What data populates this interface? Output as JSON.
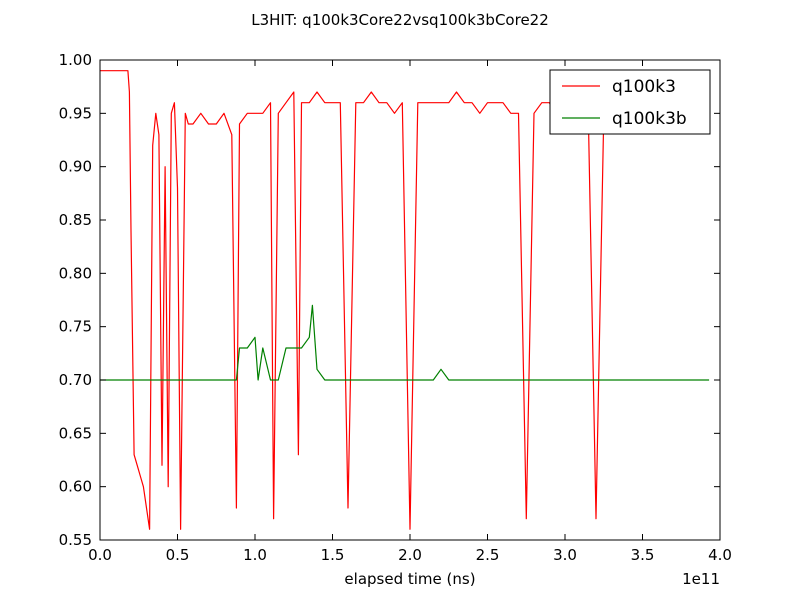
{
  "chart_data": {
    "type": "line",
    "title": "L3HIT: q100k3Core22vsq100k3bCore22",
    "xlabel": "elapsed time (ns)",
    "ylabel": "",
    "x_offset_label": "1e11",
    "xlim": [
      0.0,
      4.0
    ],
    "ylim": [
      0.55,
      1.0
    ],
    "x_ticks": [
      0.0,
      0.5,
      1.0,
      1.5,
      2.0,
      2.5,
      3.0,
      3.5,
      4.0
    ],
    "x_tick_labels": [
      "0.0",
      "0.5",
      "1.0",
      "1.5",
      "2.0",
      "2.5",
      "3.0",
      "3.5",
      "4.0"
    ],
    "y_ticks": [
      0.55,
      0.6,
      0.65,
      0.7,
      0.75,
      0.8,
      0.85,
      0.9,
      0.95,
      1.0
    ],
    "y_tick_labels": [
      "0.55",
      "0.60",
      "0.65",
      "0.70",
      "0.75",
      "0.80",
      "0.85",
      "0.90",
      "0.95",
      "1.00"
    ],
    "grid": false,
    "legend_position": "top-right",
    "series": [
      {
        "name": "q100k3",
        "color": "#ff0000",
        "x": [
          0.0,
          0.02,
          0.05,
          0.1,
          0.15,
          0.18,
          0.19,
          0.2,
          0.22,
          0.24,
          0.26,
          0.28,
          0.3,
          0.32,
          0.34,
          0.36,
          0.38,
          0.4,
          0.42,
          0.44,
          0.46,
          0.48,
          0.5,
          0.52,
          0.55,
          0.57,
          0.6,
          0.65,
          0.7,
          0.75,
          0.8,
          0.85,
          0.88,
          0.9,
          0.95,
          1.0,
          1.05,
          1.1,
          1.12,
          1.15,
          1.2,
          1.25,
          1.28,
          1.3,
          1.35,
          1.4,
          1.45,
          1.5,
          1.55,
          1.6,
          1.65,
          1.7,
          1.75,
          1.8,
          1.85,
          1.9,
          1.95,
          2.0,
          2.05,
          2.1,
          2.15,
          2.2,
          2.25,
          2.3,
          2.35,
          2.4,
          2.45,
          2.5,
          2.55,
          2.6,
          2.65,
          2.7,
          2.75,
          2.8,
          2.85,
          2.9,
          2.95,
          3.0,
          3.05,
          3.1,
          3.15,
          3.2,
          3.25,
          3.3,
          3.35,
          3.4,
          3.45,
          3.5,
          3.55,
          3.6,
          3.65,
          3.7,
          3.75,
          3.8,
          3.85,
          3.9,
          3.93
        ],
        "values": [
          0.99,
          0.99,
          0.99,
          0.99,
          0.99,
          0.99,
          0.97,
          0.84,
          0.63,
          0.62,
          0.61,
          0.6,
          0.58,
          0.56,
          0.92,
          0.95,
          0.93,
          0.62,
          0.9,
          0.6,
          0.95,
          0.96,
          0.88,
          0.56,
          0.95,
          0.94,
          0.94,
          0.95,
          0.94,
          0.94,
          0.95,
          0.93,
          0.58,
          0.94,
          0.95,
          0.95,
          0.95,
          0.96,
          0.57,
          0.95,
          0.96,
          0.97,
          0.63,
          0.96,
          0.96,
          0.97,
          0.96,
          0.96,
          0.96,
          0.58,
          0.96,
          0.96,
          0.97,
          0.96,
          0.96,
          0.95,
          0.96,
          0.56,
          0.96,
          0.96,
          0.96,
          0.96,
          0.96,
          0.97,
          0.96,
          0.96,
          0.95,
          0.96,
          0.96,
          0.96,
          0.95,
          0.95,
          0.57,
          0.95,
          0.96,
          0.96,
          0.94,
          0.95,
          0.95,
          0.95,
          0.95,
          0.57,
          0.95,
          0.95,
          0.95,
          0.94,
          0.96,
          0.95,
          0.95,
          0.95,
          0.94,
          0.95,
          0.95,
          0.95,
          0.95,
          0.95,
          0.94
        ]
      },
      {
        "name": "q100k3b",
        "color": "#008000",
        "x": [
          0.0,
          0.05,
          0.1,
          0.15,
          0.2,
          0.25,
          0.3,
          0.35,
          0.4,
          0.45,
          0.5,
          0.55,
          0.6,
          0.65,
          0.7,
          0.75,
          0.8,
          0.85,
          0.88,
          0.9,
          0.95,
          1.0,
          1.02,
          1.05,
          1.1,
          1.15,
          1.2,
          1.25,
          1.3,
          1.35,
          1.37,
          1.4,
          1.45,
          1.5,
          1.55,
          1.6,
          1.65,
          1.7,
          1.75,
          1.8,
          1.85,
          1.9,
          1.95,
          2.0,
          2.05,
          2.1,
          2.15,
          2.2,
          2.25,
          2.3,
          2.35,
          2.4,
          2.45,
          2.5,
          2.55,
          2.6,
          2.65,
          2.7,
          2.75,
          2.8,
          2.85,
          2.9,
          2.95,
          3.0,
          3.05,
          3.1,
          3.15,
          3.2,
          3.25,
          3.3,
          3.35,
          3.4,
          3.45,
          3.5,
          3.55,
          3.6,
          3.65,
          3.7,
          3.75,
          3.8,
          3.85,
          3.9,
          3.93
        ],
        "values": [
          0.7,
          0.7,
          0.7,
          0.7,
          0.7,
          0.7,
          0.7,
          0.7,
          0.7,
          0.7,
          0.7,
          0.7,
          0.7,
          0.7,
          0.7,
          0.7,
          0.7,
          0.7,
          0.7,
          0.73,
          0.73,
          0.74,
          0.7,
          0.73,
          0.7,
          0.7,
          0.73,
          0.73,
          0.73,
          0.74,
          0.77,
          0.71,
          0.7,
          0.7,
          0.7,
          0.7,
          0.7,
          0.7,
          0.7,
          0.7,
          0.7,
          0.7,
          0.7,
          0.7,
          0.7,
          0.7,
          0.7,
          0.71,
          0.7,
          0.7,
          0.7,
          0.7,
          0.7,
          0.7,
          0.7,
          0.7,
          0.7,
          0.7,
          0.7,
          0.7,
          0.7,
          0.7,
          0.7,
          0.7,
          0.7,
          0.7,
          0.7,
          0.7,
          0.7,
          0.7,
          0.7,
          0.7,
          0.7,
          0.7,
          0.7,
          0.7,
          0.7,
          0.7,
          0.7,
          0.7,
          0.7,
          0.7,
          0.7
        ]
      }
    ]
  }
}
